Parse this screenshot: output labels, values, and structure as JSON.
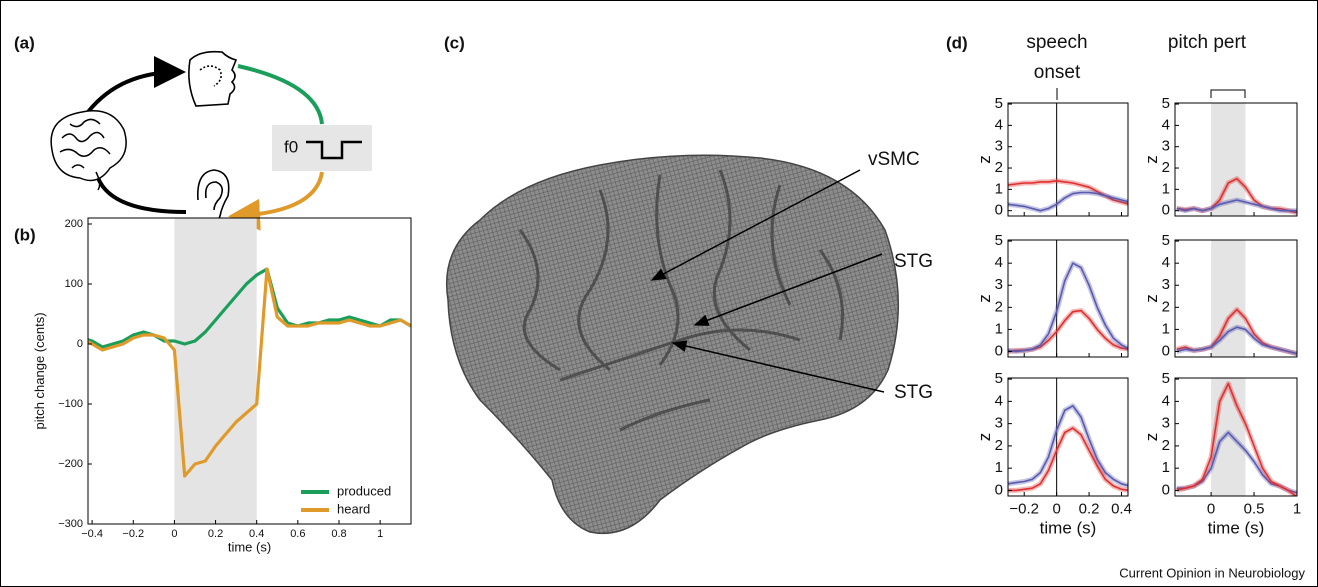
{
  "panel_labels": [
    "(a)",
    "(b)",
    "(c)",
    "(d)"
  ],
  "diagram": {
    "f0_label": "f0"
  },
  "brain_labels": [
    "vSMC",
    "STG",
    "STG"
  ],
  "column_titles": [
    "speech onset",
    "pitch pert"
  ],
  "footer": "Current Opinion in Neurobiology",
  "chart_data": [
    {
      "type": "line",
      "xlabel": "time (s)",
      "ylabel": "pitch change (cents)",
      "xlim": [
        -0.42,
        1.15
      ],
      "ylim": [
        -300,
        210
      ],
      "xticks": [
        {
          "value": -0.4,
          "label": "−0.4"
        },
        {
          "value": -0.2,
          "label": "−0.2"
        },
        0,
        0.2,
        0.4,
        0.6,
        0.8,
        1
      ],
      "yticks": [
        {
          "value": -300,
          "label": "−300"
        },
        {
          "value": -200,
          "label": "−200"
        },
        {
          "value": -100,
          "label": "−100"
        },
        0,
        100,
        200
      ],
      "shade": [
        0,
        0.4
      ],
      "legend": "lower right",
      "x": [
        -0.45,
        -0.4,
        -0.35,
        -0.3,
        -0.25,
        -0.2,
        -0.15,
        -0.1,
        -0.05,
        0,
        0.05,
        0.1,
        0.15,
        0.2,
        0.25,
        0.3,
        0.35,
        0.4,
        0.45,
        0.5,
        0.55,
        0.6,
        0.65,
        0.7,
        0.75,
        0.8,
        0.85,
        0.9,
        0.95,
        1.0,
        1.05,
        1.1,
        1.15
      ],
      "series": [
        {
          "name": "produced",
          "color": "#1a9e5a",
          "values": [
            10,
            5,
            -5,
            0,
            5,
            15,
            20,
            15,
            5,
            5,
            0,
            5,
            20,
            40,
            60,
            80,
            100,
            115,
            125,
            60,
            35,
            30,
            35,
            35,
            40,
            40,
            45,
            40,
            35,
            30,
            40,
            40,
            30
          ]
        },
        {
          "name": "heard",
          "color": "#e09a2a",
          "values": [
            10,
            0,
            -10,
            -5,
            0,
            10,
            15,
            15,
            10,
            -10,
            -220,
            -200,
            -195,
            -170,
            -150,
            -130,
            -115,
            -100,
            125,
            45,
            30,
            30,
            30,
            35,
            35,
            35,
            40,
            35,
            30,
            30,
            35,
            40,
            30
          ]
        }
      ]
    },
    {
      "type": "line",
      "ylabel": "z",
      "xlim": [
        -0.3,
        0.44
      ],
      "ylim": [
        -0.25,
        5.05
      ],
      "xticks": [
        {
          "value": -0.2,
          "label": "−0.2"
        },
        0,
        0.2,
        0.4
      ],
      "yticks": [
        0,
        1,
        2,
        3,
        4,
        5
      ],
      "vline": 0,
      "x": [
        -0.3,
        -0.25,
        -0.2,
        -0.15,
        -0.1,
        -0.05,
        0,
        0.05,
        0.1,
        0.15,
        0.2,
        0.25,
        0.3,
        0.35,
        0.4,
        0.45
      ],
      "series": [
        {
          "color": "#e03030",
          "values": [
            1.2,
            1.25,
            1.3,
            1.3,
            1.35,
            1.35,
            1.4,
            1.35,
            1.3,
            1.2,
            1.1,
            0.9,
            0.7,
            0.5,
            0.4,
            0.3
          ]
        },
        {
          "color": "#5a5ab0",
          "values": [
            0.3,
            0.25,
            0.2,
            0.1,
            0.0,
            0.1,
            0.3,
            0.6,
            0.8,
            0.85,
            0.85,
            0.8,
            0.7,
            0.6,
            0.5,
            0.4
          ]
        }
      ]
    },
    {
      "type": "line",
      "ylabel": "z",
      "xlim": [
        -0.42,
        1
      ],
      "ylim": [
        -0.25,
        5.05
      ],
      "xticks": [
        0,
        0.5,
        1
      ],
      "yticks": [
        0,
        1,
        2,
        3,
        4,
        5
      ],
      "shade": [
        0,
        0.4
      ],
      "x": [
        -0.4,
        -0.3,
        -0.2,
        -0.1,
        0,
        0.1,
        0.2,
        0.3,
        0.4,
        0.5,
        0.6,
        0.7,
        0.8,
        0.9,
        1.0
      ],
      "series": [
        {
          "color": "#e03030",
          "values": [
            0.1,
            0.05,
            0.1,
            0.0,
            0.1,
            0.5,
            1.3,
            1.5,
            1.1,
            0.5,
            0.2,
            0.1,
            0.1,
            0.0,
            -0.1
          ]
        },
        {
          "color": "#5a5ab0",
          "values": [
            0.1,
            0.0,
            0.1,
            0.0,
            0.1,
            0.3,
            0.4,
            0.5,
            0.4,
            0.3,
            0.2,
            0.1,
            0.0,
            0.0,
            0.0
          ]
        }
      ]
    },
    {
      "type": "line",
      "ylabel": "z",
      "xlim": [
        -0.3,
        0.44
      ],
      "ylim": [
        -0.25,
        5.05
      ],
      "xticks": [
        {
          "value": -0.2,
          "label": "−0.2"
        },
        0,
        0.2,
        0.4
      ],
      "yticks": [
        0,
        1,
        2,
        3,
        4,
        5
      ],
      "vline": 0,
      "x": [
        -0.3,
        -0.25,
        -0.2,
        -0.15,
        -0.1,
        -0.05,
        0,
        0.05,
        0.1,
        0.15,
        0.2,
        0.25,
        0.3,
        0.35,
        0.4,
        0.45
      ],
      "series": [
        {
          "color": "#e03030",
          "values": [
            0,
            0.05,
            0.05,
            0.1,
            0.2,
            0.5,
            0.9,
            1.4,
            1.8,
            1.85,
            1.5,
            1.0,
            0.6,
            0.3,
            0.15,
            0.1
          ]
        },
        {
          "color": "#5a5ab0",
          "values": [
            0.05,
            0,
            0.05,
            0.1,
            0.3,
            0.8,
            1.8,
            3.2,
            4.0,
            3.8,
            3.0,
            2.0,
            1.2,
            0.6,
            0.3,
            0.1
          ]
        }
      ]
    },
    {
      "type": "line",
      "ylabel": "z",
      "xlim": [
        -0.42,
        1
      ],
      "ylim": [
        -0.25,
        5.05
      ],
      "xticks": [
        0,
        0.5,
        1
      ],
      "yticks": [
        0,
        1,
        2,
        3,
        4,
        5
      ],
      "shade": [
        0,
        0.4
      ],
      "x": [
        -0.4,
        -0.3,
        -0.2,
        -0.1,
        0,
        0.1,
        0.2,
        0.3,
        0.4,
        0.5,
        0.6,
        0.7,
        0.8,
        0.9,
        1.0
      ],
      "series": [
        {
          "color": "#e03030",
          "values": [
            0.1,
            0.2,
            0.05,
            0.1,
            0.2,
            0.7,
            1.5,
            1.9,
            1.5,
            0.8,
            0.4,
            0.2,
            0.1,
            0,
            -0.1
          ]
        },
        {
          "color": "#5a5ab0",
          "values": [
            0.0,
            0.1,
            0.05,
            0.1,
            0.2,
            0.5,
            0.9,
            1.1,
            1.0,
            0.6,
            0.3,
            0.2,
            0.1,
            0,
            -0.1
          ]
        }
      ]
    },
    {
      "type": "line",
      "xlabel": "time (s)",
      "ylabel": "z",
      "xlim": [
        -0.3,
        0.44
      ],
      "ylim": [
        -0.25,
        5.05
      ],
      "xticks": [
        {
          "value": -0.2,
          "label": "−0.2"
        },
        0,
        0.2,
        0.4
      ],
      "yticks": [
        0,
        1,
        2,
        3,
        4,
        5
      ],
      "vline": 0,
      "x": [
        -0.3,
        -0.25,
        -0.2,
        -0.15,
        -0.1,
        -0.05,
        0,
        0.05,
        0.1,
        0.15,
        0.2,
        0.25,
        0.3,
        0.35,
        0.4,
        0.45
      ],
      "series": [
        {
          "color": "#5a5ab0",
          "values": [
            0.3,
            0.35,
            0.4,
            0.5,
            0.8,
            1.5,
            2.7,
            3.6,
            3.8,
            3.3,
            2.3,
            1.4,
            0.8,
            0.5,
            0.3,
            0.2
          ]
        },
        {
          "color": "#e03030",
          "values": [
            0,
            0,
            0.05,
            0.1,
            0.3,
            0.9,
            1.8,
            2.6,
            2.8,
            2.5,
            1.8,
            1.1,
            0.5,
            0.2,
            0.05,
            0
          ]
        }
      ]
    },
    {
      "type": "line",
      "xlabel": "time (s)",
      "ylabel": "z",
      "xlim": [
        -0.42,
        1
      ],
      "ylim": [
        -0.25,
        5.05
      ],
      "xticks": [
        0,
        0.5,
        1
      ],
      "yticks": [
        0,
        1,
        2,
        3,
        4,
        5
      ],
      "shade": [
        0,
        0.4
      ],
      "x": [
        -0.4,
        -0.3,
        -0.2,
        -0.1,
        0,
        0.1,
        0.2,
        0.3,
        0.4,
        0.5,
        0.6,
        0.7,
        0.8,
        0.9,
        1.0
      ],
      "series": [
        {
          "color": "#5a5ab0",
          "values": [
            0.1,
            0.1,
            0.2,
            0.4,
            1.0,
            2.2,
            2.6,
            2.2,
            1.8,
            1.3,
            0.7,
            0.3,
            0.2,
            0,
            -0.1
          ]
        },
        {
          "color": "#e03030",
          "values": [
            0.0,
            0.1,
            0.2,
            0.5,
            1.5,
            4.0,
            4.8,
            3.8,
            3.0,
            2.0,
            1.0,
            0.4,
            0.2,
            0,
            -0.3
          ]
        }
      ]
    }
  ]
}
